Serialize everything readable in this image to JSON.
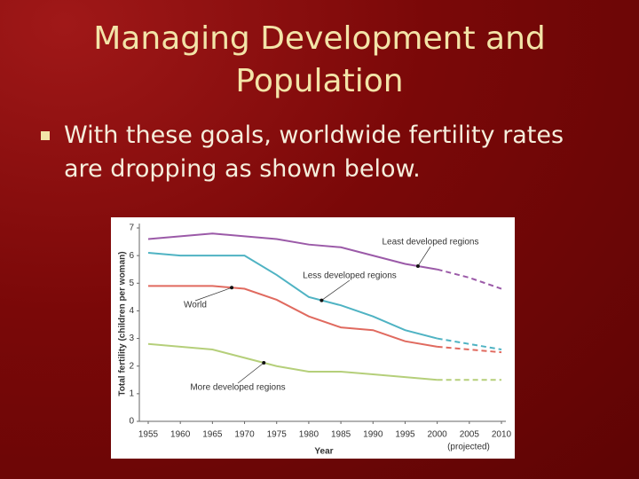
{
  "slide": {
    "title_lines": [
      "Managing Development and",
      "Population"
    ],
    "bullet_lines": [
      "With these goals, worldwide fertility rates",
      "are dropping as shown below."
    ]
  },
  "chart_data": {
    "type": "line",
    "x_label": "Year",
    "y_label": "Total fertility (children per woman)",
    "projected_label": "(projected)",
    "x": [
      1955,
      1960,
      1965,
      1970,
      1975,
      1980,
      1985,
      1990,
      1995,
      2000,
      2005,
      2010
    ],
    "xlim": [
      1955,
      2010
    ],
    "xticks": [
      1955,
      1960,
      1965,
      1970,
      1975,
      1980,
      1985,
      1990,
      1995,
      2000,
      2005,
      2010
    ],
    "ylim": [
      0,
      7
    ],
    "yticks": [
      0,
      1,
      2,
      3,
      4,
      5,
      6,
      7
    ],
    "projection_from": 2000,
    "series": [
      {
        "name": "Least developed regions",
        "color": "#9b5aa8",
        "values": [
          6.6,
          6.7,
          6.8,
          6.7,
          6.6,
          6.4,
          6.3,
          6.0,
          5.7,
          5.5,
          5.2,
          4.8
        ]
      },
      {
        "name": "Less developed regions",
        "color": "#4fb3c3",
        "values": [
          6.1,
          6.0,
          6.0,
          6.0,
          5.3,
          4.5,
          4.2,
          3.8,
          3.3,
          3.0,
          2.8,
          2.6
        ]
      },
      {
        "name": "World",
        "color": "#e06a5f",
        "values": [
          4.9,
          4.9,
          4.9,
          4.8,
          4.4,
          3.8,
          3.4,
          3.3,
          2.9,
          2.7,
          2.6,
          2.5
        ]
      },
      {
        "name": "More developed regions",
        "color": "#b5cf7a",
        "values": [
          2.8,
          2.7,
          2.6,
          2.3,
          2.0,
          1.8,
          1.8,
          1.7,
          1.6,
          1.5,
          1.5,
          1.5
        ]
      }
    ]
  }
}
